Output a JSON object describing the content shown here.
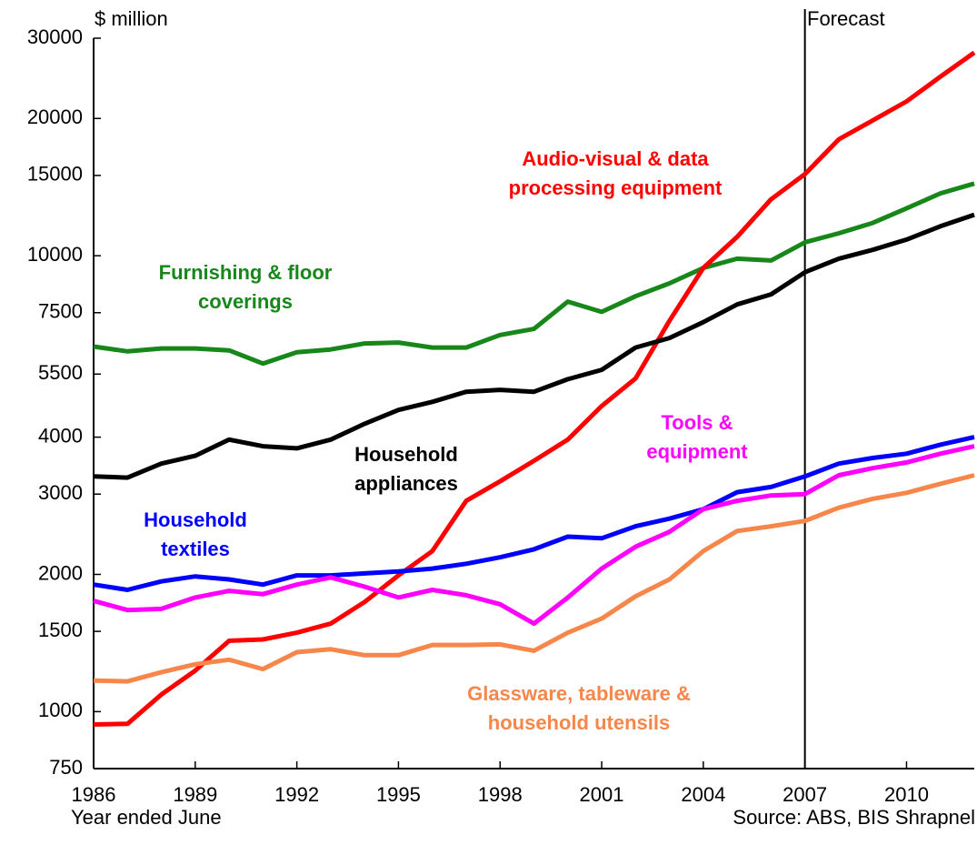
{
  "chart_data": {
    "type": "line",
    "y_label": "$ million",
    "x_label": "Year ended June",
    "source": "Source: ABS, BIS Shrapnel",
    "forecast_x": 2007,
    "forecast_label": "Forecast",
    "log_y": true,
    "x": [
      1986,
      1987,
      1988,
      1989,
      1990,
      1991,
      1992,
      1993,
      1994,
      1995,
      1996,
      1997,
      1998,
      1999,
      2000,
      2001,
      2002,
      2003,
      2004,
      2005,
      2006,
      2007,
      2008,
      2009,
      2010,
      2011,
      2012
    ],
    "xlim": [
      1986,
      2012
    ],
    "xticks": [
      1986,
      1989,
      1992,
      1995,
      1998,
      2001,
      2004,
      2007,
      2010
    ],
    "ylim": [
      750,
      30000
    ],
    "yticks": [
      750,
      1000,
      1500,
      2000,
      3000,
      4000,
      5500,
      7500,
      10000,
      15000,
      20000,
      30000
    ],
    "series": [
      {
        "name": "Furnishing & floor coverings",
        "color": "#17871a",
        "values": [
          6320,
          6170,
          6260,
          6260,
          6200,
          5800,
          6140,
          6230,
          6420,
          6450,
          6290,
          6290,
          6700,
          6910,
          7930,
          7530,
          8150,
          8700,
          9400,
          9850,
          9760,
          10700,
          11200,
          11800,
          12700,
          13700,
          14400
        ]
      },
      {
        "name": "Audio-visual & data processing equipment",
        "color": "#ff0000",
        "values": [
          937,
          940,
          1090,
          1230,
          1430,
          1440,
          1490,
          1560,
          1740,
          1990,
          2250,
          2900,
          3200,
          3550,
          3950,
          4680,
          5380,
          7200,
          9400,
          11000,
          13300,
          15100,
          18000,
          19800,
          21800,
          24700,
          27900
        ]
      },
      {
        "name": "Household appliances",
        "color": "#000000",
        "values": [
          3280,
          3260,
          3500,
          3640,
          3950,
          3820,
          3780,
          3950,
          4280,
          4590,
          4780,
          5030,
          5080,
          5030,
          5360,
          5620,
          6290,
          6600,
          7150,
          7820,
          8230,
          9200,
          9850,
          10300,
          10850,
          11600,
          12300
        ]
      },
      {
        "name": "Household textiles",
        "color": "#0000ff",
        "values": [
          1900,
          1850,
          1930,
          1980,
          1950,
          1900,
          1990,
          1990,
          2010,
          2030,
          2060,
          2110,
          2180,
          2270,
          2420,
          2400,
          2550,
          2650,
          2780,
          3030,
          3110,
          3280,
          3500,
          3600,
          3680,
          3850,
          4000
        ]
      },
      {
        "name": "Tools & equipment",
        "color": "#ff00ff",
        "values": [
          1750,
          1670,
          1680,
          1780,
          1840,
          1810,
          1900,
          1970,
          1880,
          1780,
          1850,
          1800,
          1720,
          1560,
          1780,
          2060,
          2300,
          2480,
          2780,
          2900,
          2980,
          3000,
          3300,
          3420,
          3520,
          3680,
          3820
        ]
      },
      {
        "name": "Glassware, tableware & household utensils",
        "color": "#f7864b",
        "values": [
          1170,
          1165,
          1220,
          1270,
          1300,
          1240,
          1350,
          1370,
          1330,
          1330,
          1400,
          1400,
          1405,
          1360,
          1490,
          1600,
          1790,
          1950,
          2250,
          2490,
          2550,
          2620,
          2800,
          2930,
          3020,
          3160,
          3300
        ]
      }
    ]
  }
}
